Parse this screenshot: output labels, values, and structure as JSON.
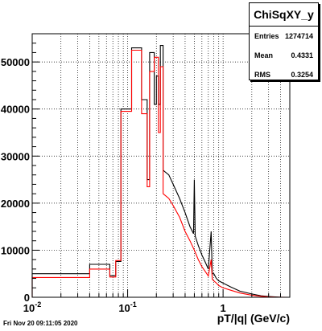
{
  "stats": {
    "title": "ChiSqXY_y",
    "rows": [
      {
        "label": "Entries",
        "value": "1274714"
      },
      {
        "label": "Mean",
        "value": "0.4331"
      },
      {
        "label": "RMS",
        "value": "0.3254"
      }
    ]
  },
  "footer": "Fri Nov 20 09:11:05 2020",
  "chart_data": {
    "type": "line",
    "title": "",
    "xlabel": "pT/|q| (GeV/c)",
    "ylabel": "",
    "xscale": "log",
    "xlim": [
      0.01,
      5
    ],
    "ylim": [
      0,
      56000
    ],
    "grid": true,
    "x_ticks": [
      {
        "value": 0.01,
        "label": "10^-2"
      },
      {
        "value": 0.1,
        "label": "10^-1"
      },
      {
        "value": 1,
        "label": "1"
      }
    ],
    "y_ticks": [
      {
        "value": 0,
        "label": "0"
      },
      {
        "value": 10000,
        "label": "10000"
      },
      {
        "value": 20000,
        "label": "20000"
      },
      {
        "value": 30000,
        "label": "30000"
      },
      {
        "value": 40000,
        "label": "40000"
      },
      {
        "value": 50000,
        "label": "50000"
      }
    ],
    "series": [
      {
        "color": "#000000",
        "step_points": [
          [
            0.01,
            0
          ],
          [
            0.01,
            5000
          ],
          [
            0.04,
            5000
          ],
          [
            0.04,
            7000
          ],
          [
            0.065,
            7000
          ],
          [
            0.065,
            4600
          ],
          [
            0.075,
            4600
          ],
          [
            0.075,
            7600
          ],
          [
            0.085,
            7600
          ],
          [
            0.085,
            40000
          ],
          [
            0.11,
            40000
          ],
          [
            0.11,
            53000
          ],
          [
            0.14,
            53000
          ],
          [
            0.14,
            42000
          ],
          [
            0.16,
            42000
          ],
          [
            0.16,
            25000
          ],
          [
            0.17,
            25000
          ],
          [
            0.17,
            52000
          ],
          [
            0.19,
            52000
          ],
          [
            0.19,
            41000
          ],
          [
            0.2,
            41000
          ],
          [
            0.2,
            47000
          ],
          [
            0.21,
            47000
          ],
          [
            0.21,
            41000
          ],
          [
            0.22,
            41000
          ],
          [
            0.22,
            53500
          ],
          [
            0.235,
            53500
          ],
          [
            0.235,
            27000
          ],
          [
            0.27,
            26000
          ],
          [
            0.3,
            24000
          ],
          [
            0.35,
            21000
          ],
          [
            0.4,
            18000
          ],
          [
            0.45,
            15000
          ],
          [
            0.49,
            13500
          ],
          [
            0.5,
            25000
          ],
          [
            0.51,
            13000
          ],
          [
            0.55,
            11000
          ],
          [
            0.6,
            9000
          ],
          [
            0.65,
            7500
          ],
          [
            0.7,
            6000
          ],
          [
            0.75,
            14000
          ],
          [
            0.77,
            5000
          ],
          [
            0.8,
            5000
          ],
          [
            0.85,
            4000
          ],
          [
            0.9,
            3500
          ],
          [
            1.0,
            3000
          ],
          [
            1.2,
            2200
          ],
          [
            1.5,
            1300
          ],
          [
            2.0,
            700
          ],
          [
            2.5,
            300
          ],
          [
            3.0,
            150
          ],
          [
            3.5,
            60
          ],
          [
            4.0,
            20
          ],
          [
            4.8,
            0
          ]
        ]
      },
      {
        "color": "#ff0000",
        "step_points": [
          [
            0.01,
            0
          ],
          [
            0.01,
            4200
          ],
          [
            0.04,
            4200
          ],
          [
            0.04,
            6000
          ],
          [
            0.065,
            6000
          ],
          [
            0.065,
            4300
          ],
          [
            0.075,
            4300
          ],
          [
            0.075,
            7800
          ],
          [
            0.085,
            7800
          ],
          [
            0.085,
            39500
          ],
          [
            0.11,
            39500
          ],
          [
            0.11,
            52500
          ],
          [
            0.14,
            52500
          ],
          [
            0.14,
            39000
          ],
          [
            0.16,
            39000
          ],
          [
            0.16,
            23500
          ],
          [
            0.17,
            23500
          ],
          [
            0.17,
            48000
          ],
          [
            0.19,
            48000
          ],
          [
            0.19,
            51000
          ],
          [
            0.21,
            51000
          ],
          [
            0.21,
            35000
          ],
          [
            0.22,
            35000
          ],
          [
            0.22,
            49000
          ],
          [
            0.235,
            49000
          ],
          [
            0.235,
            22000
          ],
          [
            0.27,
            21000
          ],
          [
            0.3,
            19500
          ],
          [
            0.35,
            17000
          ],
          [
            0.4,
            14000
          ],
          [
            0.45,
            12000
          ],
          [
            0.5,
            10000
          ],
          [
            0.55,
            8000
          ],
          [
            0.6,
            6500
          ],
          [
            0.65,
            5500
          ],
          [
            0.7,
            4500
          ],
          [
            0.75,
            8000
          ],
          [
            0.77,
            3800
          ],
          [
            0.8,
            3500
          ],
          [
            0.85,
            3000
          ],
          [
            0.9,
            2500
          ],
          [
            1.0,
            2000
          ],
          [
            1.2,
            1500
          ],
          [
            1.5,
            900
          ],
          [
            2.0,
            450
          ],
          [
            2.5,
            200
          ],
          [
            3.0,
            90
          ],
          [
            3.5,
            40
          ],
          [
            4.0,
            10
          ],
          [
            4.8,
            0
          ]
        ]
      }
    ]
  }
}
